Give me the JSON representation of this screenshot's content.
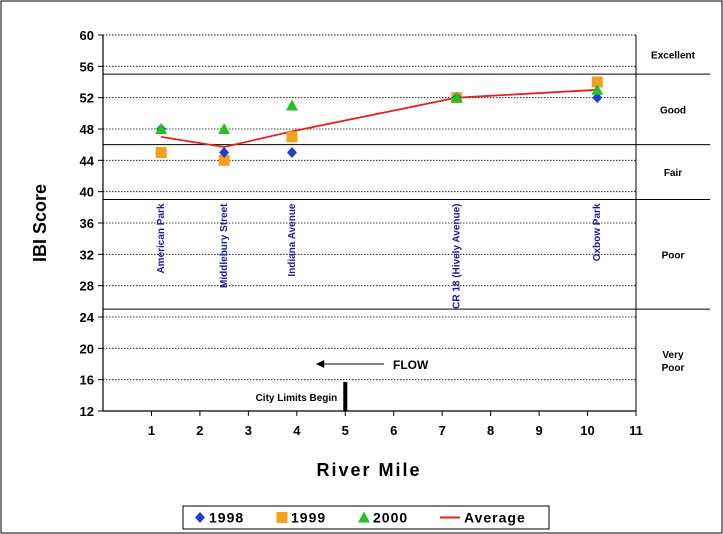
{
  "chart_data": {
    "type": "scatter",
    "xlabel": "River Mile",
    "ylabel": "IBI Score",
    "xlim": [
      0,
      11
    ],
    "ylim": [
      12,
      60
    ],
    "xticks": [
      "1",
      "2",
      "3",
      "4",
      "5",
      "6",
      "7",
      "8",
      "9",
      "10",
      "11"
    ],
    "yticks": [
      "12",
      "16",
      "20",
      "24",
      "28",
      "32",
      "36",
      "40",
      "44",
      "48",
      "52",
      "56",
      "60"
    ],
    "grid": "horizontal dotted",
    "bands": [
      {
        "label": "Excellent",
        "from": 55,
        "to": 60
      },
      {
        "label": "Good",
        "from": 46,
        "to": 55
      },
      {
        "label": "Fair",
        "from": 39,
        "to": 46
      },
      {
        "label": "Poor",
        "from": 25,
        "to": 39
      },
      {
        "label": "Very Poor",
        "from": 12,
        "to": 25
      }
    ],
    "sites": [
      {
        "label": "American Park",
        "x": 1.2
      },
      {
        "label": "Middlebury Street",
        "x": 2.5
      },
      {
        "label": "Indiana Avenue",
        "x": 3.9
      },
      {
        "label": "CR 18 (Hively Avenue)",
        "x": 7.3
      },
      {
        "label": "Oxbow Park",
        "x": 10.2
      }
    ],
    "series": [
      {
        "name": "1998",
        "color": "#1f3fd1",
        "marker": "diamond",
        "points": [
          [
            1.2,
            48
          ],
          [
            2.5,
            45
          ],
          [
            3.9,
            45
          ],
          [
            7.3,
            52
          ],
          [
            10.2,
            52
          ]
        ]
      },
      {
        "name": "1999",
        "color": "#f5a020",
        "marker": "square",
        "points": [
          [
            1.2,
            45
          ],
          [
            2.5,
            44
          ],
          [
            3.9,
            47
          ],
          [
            7.3,
            52
          ],
          [
            10.2,
            54
          ]
        ]
      },
      {
        "name": "2000",
        "color": "#22c322",
        "marker": "triangle",
        "points": [
          [
            1.2,
            48
          ],
          [
            2.5,
            48
          ],
          [
            3.9,
            51
          ],
          [
            7.3,
            52
          ],
          [
            10.2,
            53
          ]
        ]
      },
      {
        "name": "Average",
        "color": "#e8201e",
        "marker": "line",
        "points": [
          [
            1.2,
            47
          ],
          [
            2.5,
            45.7
          ],
          [
            3.9,
            47.7
          ],
          [
            7.3,
            52
          ],
          [
            10.2,
            53
          ]
        ]
      }
    ],
    "annotations": {
      "flow_label": "FLOW",
      "city_limits_label": "City Limits Begin",
      "city_limits_x": 5
    },
    "legend_position": "bottom"
  }
}
